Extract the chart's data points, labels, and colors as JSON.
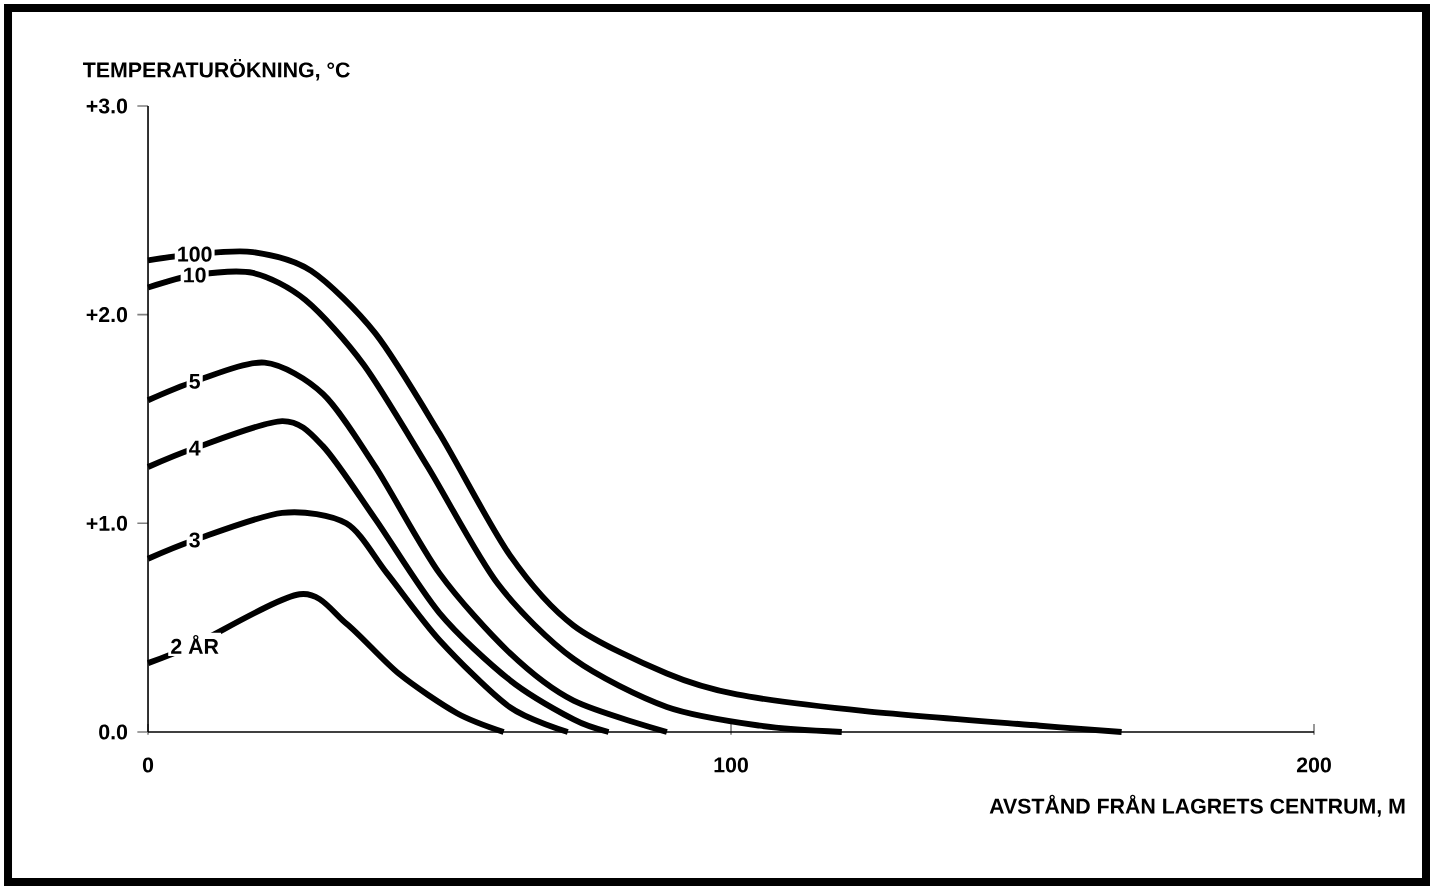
{
  "chart_data": {
    "type": "line",
    "xlabel": "AVSTÅND FRÅN LAGRETS CENTRUM, M",
    "ylabel": "TEMPERATURÖKNING, °C",
    "xlim": [
      0,
      200
    ],
    "ylim": [
      0,
      3
    ],
    "xticks": [
      0,
      100,
      200
    ],
    "yticks": [
      {
        "value": 0,
        "label": "0.0"
      },
      {
        "value": 1,
        "label": "+1.0"
      },
      {
        "value": 2,
        "label": "+2.0"
      },
      {
        "value": 3,
        "label": "+3.0"
      }
    ],
    "series": [
      {
        "name": "100",
        "color": "#000000",
        "x": [
          0,
          8,
          18,
          28,
          39,
          50,
          62,
          73,
          89,
          101,
          123,
          153,
          167
        ],
        "values": [
          2.26,
          2.29,
          2.3,
          2.21,
          1.91,
          1.43,
          0.85,
          0.51,
          0.28,
          0.18,
          0.1,
          0.03,
          0
        ]
      },
      {
        "name": "10",
        "color": "#000000",
        "x": [
          0,
          8,
          18,
          27,
          37,
          48,
          60,
          73,
          89,
          105,
          119
        ],
        "values": [
          2.13,
          2.19,
          2.2,
          2.07,
          1.76,
          1.27,
          0.71,
          0.35,
          0.12,
          0.03,
          0
        ]
      },
      {
        "name": "5",
        "color": "#000000",
        "x": [
          0,
          8,
          20,
          30,
          39,
          50,
          62,
          73,
          89
        ],
        "values": [
          1.59,
          1.68,
          1.77,
          1.62,
          1.27,
          0.76,
          0.38,
          0.15,
          0
        ]
      },
      {
        "name": "4",
        "color": "#000000",
        "x": [
          0,
          8,
          23,
          30,
          39,
          50,
          62,
          73,
          79
        ],
        "values": [
          1.27,
          1.36,
          1.49,
          1.37,
          1.02,
          0.57,
          0.25,
          0.06,
          0
        ]
      },
      {
        "name": "3",
        "color": "#000000",
        "x": [
          0,
          8,
          23,
          34,
          41,
          50,
          62,
          72
        ],
        "values": [
          0.83,
          0.92,
          1.05,
          1.0,
          0.76,
          0.44,
          0.12,
          0
        ]
      },
      {
        "name": "2 ÅR",
        "color": "#000000",
        "x": [
          0,
          8,
          26,
          34,
          43,
          53,
          61
        ],
        "values": [
          0.33,
          0.42,
          0.66,
          0.52,
          0.28,
          0.09,
          0
        ]
      }
    ]
  }
}
